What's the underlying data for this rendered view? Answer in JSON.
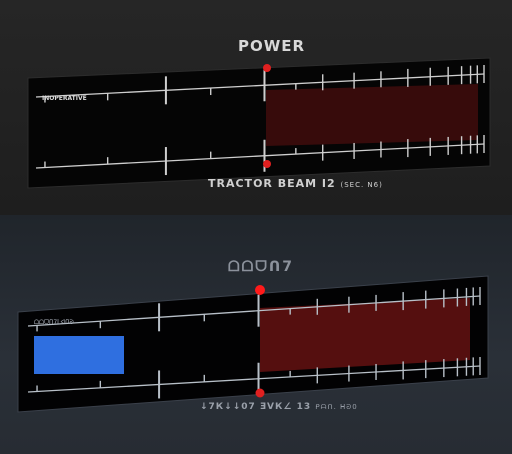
{
  "top_panel": {
    "title": "POWER",
    "status_label": "INOPERATIVE",
    "caption_main": "TRACTOR BEAM I2",
    "caption_sub": "(SEC. N6)",
    "level": 0.0,
    "indicator_color": "#e02020",
    "band_color": "#3a0c0c"
  },
  "bottom_panel": {
    "title": "ᗝᗝᗜᑎ7",
    "status_label": "ᗝᗝᗜᑎ7ᒪᐊᑎᘐ",
    "caption_main": "↓7К↓↓07 ƎVК∠ 13",
    "caption_sub": "ᑭᗩᑎ. ᕼᘐ0",
    "level": 0.2,
    "bar_color": "#2f6fe0",
    "indicator_color": "#ff1a1a",
    "band_color": "#5a1010"
  }
}
